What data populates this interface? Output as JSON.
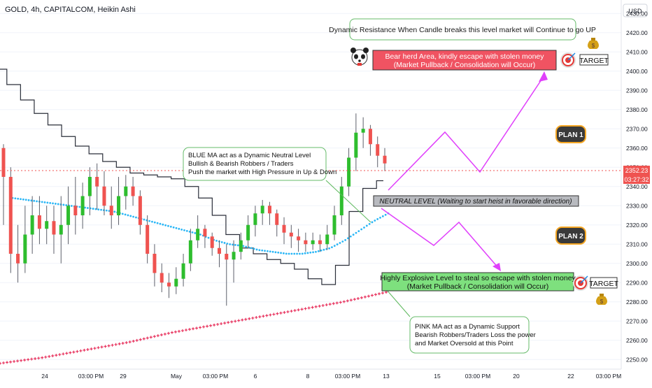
{
  "header": {
    "title": "GOLD, 4h, CAPITALCOM, Heikin Ashi"
  },
  "axis": {
    "currency": "USD",
    "price_ticks": [
      2250,
      2260,
      2270,
      2280,
      2290,
      2300,
      2310,
      2320,
      2330,
      2340,
      2350,
      2360,
      2370,
      2380,
      2390,
      2400,
      2410,
      2420,
      2430
    ],
    "time_ticks": [
      "24",
      "03:00 PM",
      "29",
      "May",
      "03:00 PM",
      "6",
      "8",
      "03:00 PM",
      "13",
      "15",
      "03:00 PM",
      "20",
      "22",
      "03:00 PM"
    ],
    "last_price": "2352.23",
    "countdown": "03:27:32"
  },
  "annotations": {
    "resistance_note": "Dynamic Resistance When Candle breaks this level market will Continue to go UP",
    "bear_zone_line1": "Bear herd Area, kindly escape with stolen money",
    "bear_zone_line2": "(Market Pullback / Consolidation will Occur)",
    "target_top": "TARGET",
    "plan1": "PLAN 1",
    "plan2": "PLAN 2",
    "neutral_level": "NEUTRAL LEVEL (Waiting to start heist in favorable direction)",
    "blue_ma_line1": "BLUE MA act as a Dynamic Neutral Level",
    "blue_ma_line2": "Bullish & Bearish Robbers / Traders",
    "blue_ma_line3": "Push the market with High Pressure in Up & Down",
    "bull_zone_line1": "Highly Explosive Level to steal so escape with stolen money",
    "bull_zone_line2": "(Market Pullback / Consolidation will Occur)",
    "target_bottom": "TARGET",
    "pink_ma_line1": "PINK MA act as a Dynamic Support",
    "pink_ma_line2": "Bearish Robbers/Traders Loss the power",
    "pink_ma_line3": "and Market Oversold at this Point"
  },
  "colors": {
    "bull": "#2ebd2e",
    "bear": "#ef5350",
    "blue_ma": "#29b6f6",
    "pink_ma": "#e8345f",
    "black_ma": "#2a2e39",
    "path": "#e040fb",
    "bear_zone": "#f05362",
    "bull_zone": "#7ee07e",
    "neutral_zone": "#b8babf"
  },
  "chart_data": {
    "type": "candlestick",
    "title": "GOLD, 4h, CAPITALCOM, Heikin Ashi",
    "ylabel": "USD",
    "ylim": [
      2245,
      2437
    ],
    "candles": [
      {
        "o": 2360,
        "c": 2345,
        "h": 2362,
        "l": 2320
      },
      {
        "o": 2345,
        "c": 2305,
        "h": 2350,
        "l": 2295
      },
      {
        "o": 2305,
        "c": 2300,
        "h": 2320,
        "l": 2290
      },
      {
        "o": 2300,
        "c": 2315,
        "h": 2330,
        "l": 2295
      },
      {
        "o": 2315,
        "c": 2325,
        "h": 2335,
        "l": 2305
      },
      {
        "o": 2325,
        "c": 2318,
        "h": 2335,
        "l": 2310
      },
      {
        "o": 2318,
        "c": 2322,
        "h": 2330,
        "l": 2310
      },
      {
        "o": 2322,
        "c": 2315,
        "h": 2330,
        "l": 2305
      },
      {
        "o": 2315,
        "c": 2320,
        "h": 2335,
        "l": 2300
      },
      {
        "o": 2320,
        "c": 2330,
        "h": 2340,
        "l": 2310
      },
      {
        "o": 2330,
        "c": 2325,
        "h": 2345,
        "l": 2315
      },
      {
        "o": 2325,
        "c": 2335,
        "h": 2342,
        "l": 2318
      },
      {
        "o": 2335,
        "c": 2345,
        "h": 2350,
        "l": 2325
      },
      {
        "o": 2345,
        "c": 2340,
        "h": 2352,
        "l": 2328
      },
      {
        "o": 2340,
        "c": 2330,
        "h": 2348,
        "l": 2325
      },
      {
        "o": 2330,
        "c": 2325,
        "h": 2340,
        "l": 2318
      },
      {
        "o": 2325,
        "c": 2335,
        "h": 2345,
        "l": 2320
      },
      {
        "o": 2335,
        "c": 2340,
        "h": 2346,
        "l": 2328
      },
      {
        "o": 2340,
        "c": 2335,
        "h": 2345,
        "l": 2330
      },
      {
        "o": 2335,
        "c": 2320,
        "h": 2338,
        "l": 2315
      },
      {
        "o": 2320,
        "c": 2305,
        "h": 2325,
        "l": 2300
      },
      {
        "o": 2305,
        "c": 2295,
        "h": 2310,
        "l": 2288
      },
      {
        "o": 2295,
        "c": 2290,
        "h": 2300,
        "l": 2285
      },
      {
        "o": 2290,
        "c": 2288,
        "h": 2295,
        "l": 2282
      },
      {
        "o": 2288,
        "c": 2292,
        "h": 2298,
        "l": 2284
      },
      {
        "o": 2292,
        "c": 2300,
        "h": 2305,
        "l": 2288
      },
      {
        "o": 2300,
        "c": 2312,
        "h": 2318,
        "l": 2296
      },
      {
        "o": 2312,
        "c": 2318,
        "h": 2325,
        "l": 2308
      },
      {
        "o": 2318,
        "c": 2314,
        "h": 2320,
        "l": 2308
      },
      {
        "o": 2314,
        "c": 2308,
        "h": 2316,
        "l": 2304
      },
      {
        "o": 2308,
        "c": 2305,
        "h": 2312,
        "l": 2298
      },
      {
        "o": 2305,
        "c": 2302,
        "h": 2310,
        "l": 2278
      },
      {
        "o": 2302,
        "c": 2306,
        "h": 2312,
        "l": 2290
      },
      {
        "o": 2306,
        "c": 2312,
        "h": 2316,
        "l": 2302
      },
      {
        "o": 2312,
        "c": 2320,
        "h": 2325,
        "l": 2308
      },
      {
        "o": 2320,
        "c": 2326,
        "h": 2330,
        "l": 2314
      },
      {
        "o": 2326,
        "c": 2330,
        "h": 2333,
        "l": 2320
      },
      {
        "o": 2330,
        "c": 2326,
        "h": 2332,
        "l": 2320
      },
      {
        "o": 2326,
        "c": 2320,
        "h": 2328,
        "l": 2314
      },
      {
        "o": 2320,
        "c": 2316,
        "h": 2324,
        "l": 2310
      },
      {
        "o": 2316,
        "c": 2314,
        "h": 2320,
        "l": 2308
      },
      {
        "o": 2314,
        "c": 2312,
        "h": 2318,
        "l": 2306
      },
      {
        "o": 2312,
        "c": 2310,
        "h": 2316,
        "l": 2306
      },
      {
        "o": 2310,
        "c": 2312,
        "h": 2316,
        "l": 2307
      },
      {
        "o": 2312,
        "c": 2310,
        "h": 2315,
        "l": 2306
      },
      {
        "o": 2310,
        "c": 2315,
        "h": 2320,
        "l": 2307
      },
      {
        "o": 2315,
        "c": 2325,
        "h": 2330,
        "l": 2312
      },
      {
        "o": 2325,
        "c": 2340,
        "h": 2345,
        "l": 2320
      },
      {
        "o": 2340,
        "c": 2355,
        "h": 2360,
        "l": 2335
      },
      {
        "o": 2355,
        "c": 2368,
        "h": 2378,
        "l": 2348
      },
      {
        "o": 2368,
        "c": 2370,
        "h": 2376,
        "l": 2360
      },
      {
        "o": 2370,
        "c": 2362,
        "h": 2372,
        "l": 2356
      },
      {
        "o": 2362,
        "c": 2356,
        "h": 2366,
        "l": 2350
      },
      {
        "o": 2356,
        "c": 2352,
        "h": 2360,
        "l": 2348
      }
    ],
    "blue_ma": [
      2334,
      2333,
      2332,
      2331,
      2330,
      2329,
      2328,
      2327,
      2325,
      2323,
      2321,
      2319,
      2317,
      2315,
      2312,
      2310,
      2309,
      2307,
      2306,
      2305,
      2305,
      2306,
      2308,
      2312,
      2317,
      2322,
      2326
    ],
    "black_ma": [
      2401,
      2393,
      2385,
      2378,
      2372,
      2366,
      2361,
      2357,
      2353,
      2350,
      2347,
      2346,
      2345,
      2344,
      2340,
      2334,
      2325,
      2315,
      2308,
      2305,
      2302,
      2300,
      2297,
      2292,
      2289,
      2299,
      2327,
      2339,
      2343
    ],
    "pink_ma": [
      2248,
      2251,
      2255,
      2259,
      2264,
      2268,
      2272,
      2276,
      2280,
      2285
    ],
    "neutral_level": 2340,
    "bear_zone": [
      2406,
      2420
    ],
    "bull_zone": [
      2285,
      2296
    ],
    "plan1_path": [
      [
        2340,
        2370
      ],
      [
        2380,
        2380
      ],
      [
        2400,
        2345
      ],
      [
        2420,
        2410
      ]
    ],
    "plan2_path": [
      [
        2320,
        2335
      ],
      [
        2340,
        2310
      ],
      [
        2360,
        2325
      ],
      [
        2380,
        2298
      ]
    ]
  }
}
